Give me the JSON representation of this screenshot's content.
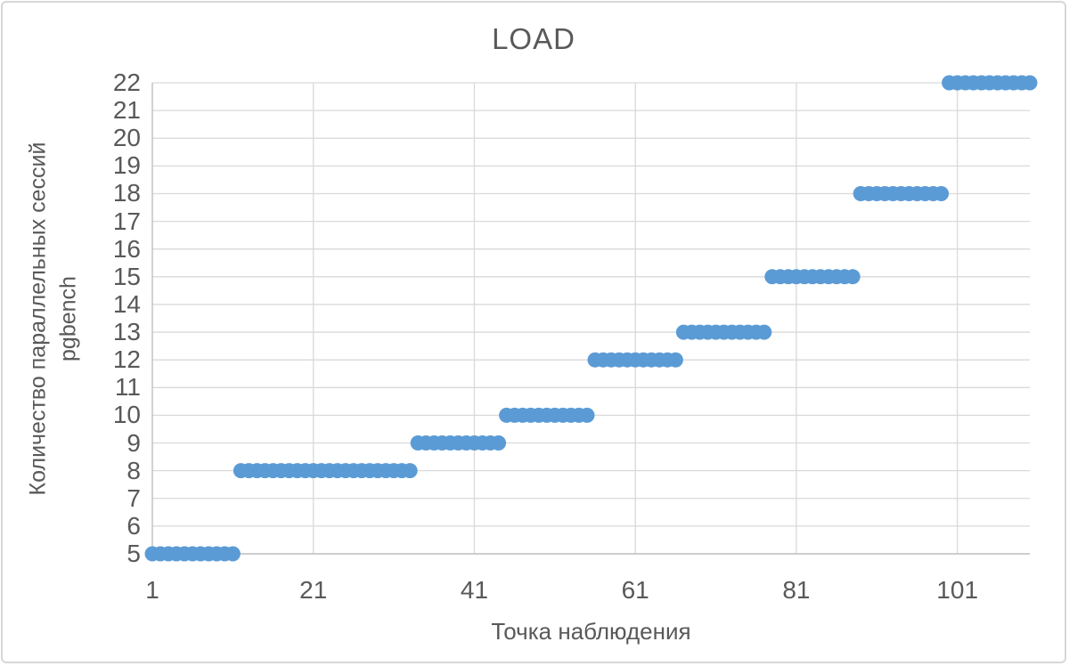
{
  "chart": {
    "title": "LOAD",
    "x_axis_title": "Точка наблюдения",
    "y_axis_title_line1": "Количество параллельных сессий",
    "y_axis_title_line2": "pgbench"
  },
  "colors": {
    "marker": "#5B9BD5",
    "gridline": "#D9D9D9",
    "axis_line": "#BFBFBF",
    "text": "#595959",
    "background": "#FFFFFF"
  },
  "chart_data": {
    "type": "scatter",
    "title": "LOAD",
    "xlabel": "Точка наблюдения",
    "ylabel": "Количество параллельных сессий pgbench",
    "xlim": [
      1,
      110
    ],
    "ylim": [
      5,
      22
    ],
    "x_ticks": [
      1,
      21,
      41,
      61,
      81,
      101
    ],
    "y_ticks": [
      5,
      6,
      7,
      8,
      9,
      10,
      11,
      12,
      13,
      14,
      15,
      16,
      17,
      18,
      19,
      20,
      21,
      22
    ],
    "grid": true,
    "legend": false,
    "series_name": "LOAD",
    "marker_diameter_px": 17,
    "segments": [
      {
        "y": 5,
        "x_start": 1,
        "x_end": 11
      },
      {
        "y": 8,
        "x_start": 12,
        "x_end": 33
      },
      {
        "y": 9,
        "x_start": 34,
        "x_end": 44
      },
      {
        "y": 10,
        "x_start": 45,
        "x_end": 55
      },
      {
        "y": 12,
        "x_start": 56,
        "x_end": 66
      },
      {
        "y": 13,
        "x_start": 67,
        "x_end": 77
      },
      {
        "y": 15,
        "x_start": 78,
        "x_end": 88
      },
      {
        "y": 18,
        "x_start": 89,
        "x_end": 99
      },
      {
        "y": 22,
        "x_start": 100,
        "x_end": 110
      }
    ]
  }
}
